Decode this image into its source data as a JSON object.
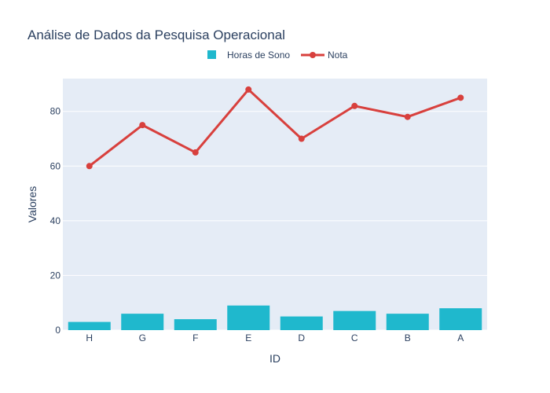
{
  "chart_data": {
    "type": "bar",
    "title": "Análise de Dados da Pesquisa Operacional",
    "xlabel": "ID",
    "ylabel": "Valores",
    "categories": [
      "H",
      "G",
      "F",
      "E",
      "D",
      "C",
      "B",
      "A"
    ],
    "ylim": [
      0,
      92
    ],
    "yticks": [
      0,
      20,
      40,
      60,
      80
    ],
    "legend_position": "top-center",
    "grid": true,
    "series": [
      {
        "name": "Horas de Sono",
        "type": "bar",
        "color": "#1fb8cd",
        "values": [
          3,
          6,
          4,
          9,
          5,
          7,
          6,
          8
        ]
      },
      {
        "name": "Nota",
        "type": "line",
        "color": "#d8403d",
        "values": [
          60,
          75,
          65,
          88,
          70,
          82,
          78,
          85
        ]
      }
    ],
    "plot_background": "#e5ecf6"
  }
}
